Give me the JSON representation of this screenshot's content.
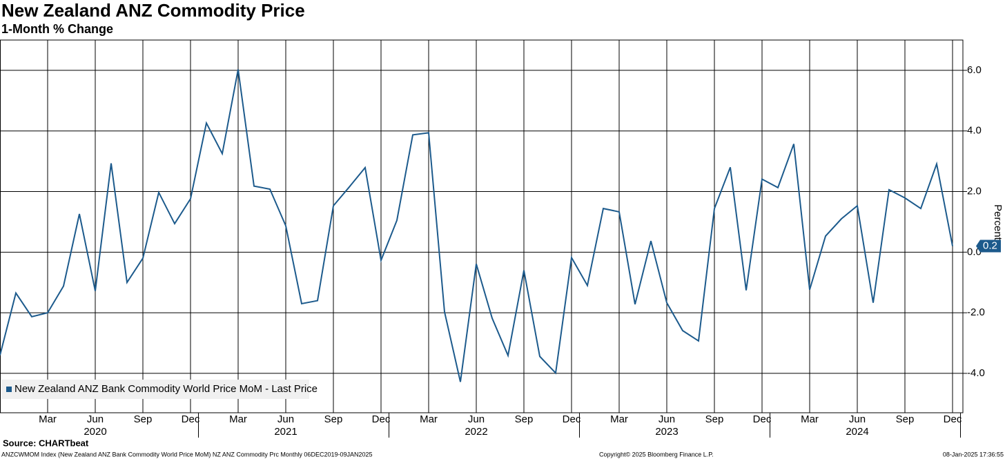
{
  "chart_data": {
    "type": "line",
    "title": "New Zealand ANZ Commodity Price",
    "subtitle": "1-Month % Change",
    "y_axis_label": "Percent",
    "source": "Source: CHARTbeat",
    "footer_left": "ANZCWMOM Index (New Zealand ANZ Bank Commodity World Price MoM) NZ ANZ Commodity Prc  Monthly 06DEC2019-09JAN2025",
    "footer_center": "Copyright© 2025 Bloomberg Finance L.P.",
    "footer_right": "08-Jan-2025 17:36:55",
    "legend_position": "lower left",
    "grid": true,
    "ylim": [
      -5.3,
      7.0
    ],
    "yticks": [
      {
        "value": -4,
        "label": "-4.0"
      },
      {
        "value": -2,
        "label": "-2.0"
      },
      {
        "value": 0,
        "label": "0.0"
      },
      {
        "value": 2,
        "label": "2.0"
      },
      {
        "value": 4,
        "label": "4.0"
      },
      {
        "value": 6,
        "label": "6.0"
      }
    ],
    "xticks": [
      {
        "value": "2020-03",
        "label": "Mar"
      },
      {
        "value": "2020-06",
        "label": "Jun"
      },
      {
        "value": "2020-09",
        "label": "Sep"
      },
      {
        "value": "2020-12",
        "label": "Dec"
      },
      {
        "value": "2021-03",
        "label": "Mar"
      },
      {
        "value": "2021-06",
        "label": "Jun"
      },
      {
        "value": "2021-09",
        "label": "Sep"
      },
      {
        "value": "2021-12",
        "label": "Dec"
      },
      {
        "value": "2022-03",
        "label": "Mar"
      },
      {
        "value": "2022-06",
        "label": "Jun"
      },
      {
        "value": "2022-09",
        "label": "Sep"
      },
      {
        "value": "2022-12",
        "label": "Dec"
      },
      {
        "value": "2023-03",
        "label": "Mar"
      },
      {
        "value": "2023-06",
        "label": "Jun"
      },
      {
        "value": "2023-09",
        "label": "Sep"
      },
      {
        "value": "2023-12",
        "label": "Dec"
      },
      {
        "value": "2024-03",
        "label": "Mar"
      },
      {
        "value": "2024-06",
        "label": "Jun"
      },
      {
        "value": "2024-09",
        "label": "Sep"
      },
      {
        "value": "2024-12",
        "label": "Dec"
      }
    ],
    "year_labels": [
      {
        "value": "2020-06",
        "label": "2020"
      },
      {
        "value": "2021-06",
        "label": "2021"
      },
      {
        "value": "2022-06",
        "label": "2022"
      },
      {
        "value": "2023-06",
        "label": "2023"
      },
      {
        "value": "2024-06",
        "label": "2024"
      }
    ],
    "x": [
      "2019-12",
      "2020-01",
      "2020-02",
      "2020-03",
      "2020-04",
      "2020-05",
      "2020-06",
      "2020-07",
      "2020-08",
      "2020-09",
      "2020-10",
      "2020-11",
      "2020-12",
      "2021-01",
      "2021-02",
      "2021-03",
      "2021-04",
      "2021-05",
      "2021-06",
      "2021-07",
      "2021-08",
      "2021-09",
      "2021-10",
      "2021-11",
      "2021-12",
      "2022-01",
      "2022-02",
      "2022-03",
      "2022-04",
      "2022-05",
      "2022-06",
      "2022-07",
      "2022-08",
      "2022-09",
      "2022-10",
      "2022-11",
      "2022-12",
      "2023-01",
      "2023-02",
      "2023-03",
      "2023-04",
      "2023-05",
      "2023-06",
      "2023-07",
      "2023-08",
      "2023-09",
      "2023-10",
      "2023-11",
      "2023-12",
      "2024-01",
      "2024-02",
      "2024-03",
      "2024-04",
      "2024-05",
      "2024-06",
      "2024-07",
      "2024-08",
      "2024-09",
      "2024-10",
      "2024-11",
      "2024-12"
    ],
    "series": [
      {
        "name": "New Zealand ANZ Bank Commodity World Price MoM - Last Price",
        "color": "#1c5a8c",
        "values": [
          -3.4,
          -1.35,
          -2.13,
          -2.0,
          -1.12,
          1.26,
          -1.28,
          2.93,
          -1.0,
          -0.2,
          1.97,
          0.94,
          1.76,
          4.26,
          3.25,
          6.03,
          2.18,
          2.08,
          0.87,
          -1.7,
          -1.6,
          1.53,
          2.15,
          2.79,
          -0.27,
          1.05,
          3.87,
          3.94,
          -1.97,
          -4.28,
          -0.39,
          -2.18,
          -3.41,
          -0.6,
          -3.44,
          -3.99,
          -0.18,
          -1.1,
          1.44,
          1.33,
          -1.72,
          0.37,
          -1.67,
          -2.59,
          -2.93,
          1.44,
          2.8,
          -1.26,
          2.41,
          2.13,
          3.57,
          -1.24,
          0.53,
          1.1,
          1.53,
          -1.67,
          2.06,
          1.79,
          1.44,
          2.91,
          0.2
        ],
        "last_value": 0.2,
        "last_value_label": "0.2"
      }
    ]
  }
}
